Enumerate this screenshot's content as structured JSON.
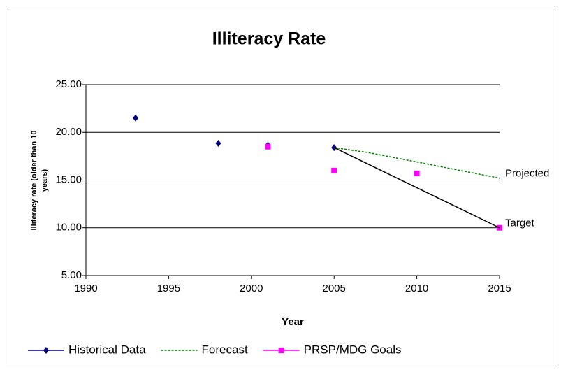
{
  "chart_data": {
    "type": "scatter",
    "title": "Illiteracy Rate",
    "xlabel": "Year",
    "ylabel": [
      "Illiteracy rate (older than 10",
      "years)"
    ],
    "xlim": [
      1990,
      2015
    ],
    "xticks": [
      1990,
      1995,
      2000,
      2005,
      2010,
      2015
    ],
    "ylim": [
      5,
      25
    ],
    "yticks": [
      {
        "value": 5,
        "label": "5.00"
      },
      {
        "value": 10,
        "label": "10.00"
      },
      {
        "value": 15,
        "label": "15.00"
      },
      {
        "value": 20,
        "label": "20.00"
      },
      {
        "value": 25,
        "label": "25.00"
      }
    ],
    "grid": true,
    "series": [
      {
        "name": "Historical Data",
        "color": "#000080",
        "marker": "diamond",
        "line": "none",
        "x": [
          1993,
          1998,
          2001,
          2005
        ],
        "values": [
          21.5,
          18.85,
          18.65,
          18.4
        ]
      },
      {
        "name": "Forecast",
        "color": "#008000",
        "marker": "none",
        "line": "dotted",
        "x": [
          2005,
          2007,
          2010,
          2015
        ],
        "values": [
          18.4,
          17.9,
          16.9,
          15.2
        ]
      },
      {
        "name": "PRSP/MDG Goals",
        "color": "#ff00ff",
        "marker": "square",
        "line": "none",
        "x": [
          2001,
          2005,
          2010,
          2015
        ],
        "values": [
          18.5,
          16.0,
          15.7,
          10.0
        ]
      },
      {
        "color": "#000000",
        "marker": "none",
        "line": "solid",
        "x": [
          2005,
          2015
        ],
        "values": [
          18.4,
          10.0
        ]
      }
    ],
    "annotations": [
      {
        "text": "Projected",
        "x": 2015,
        "y": 15.2
      },
      {
        "text": "Target",
        "x": 2015,
        "y": 10.0
      }
    ]
  }
}
